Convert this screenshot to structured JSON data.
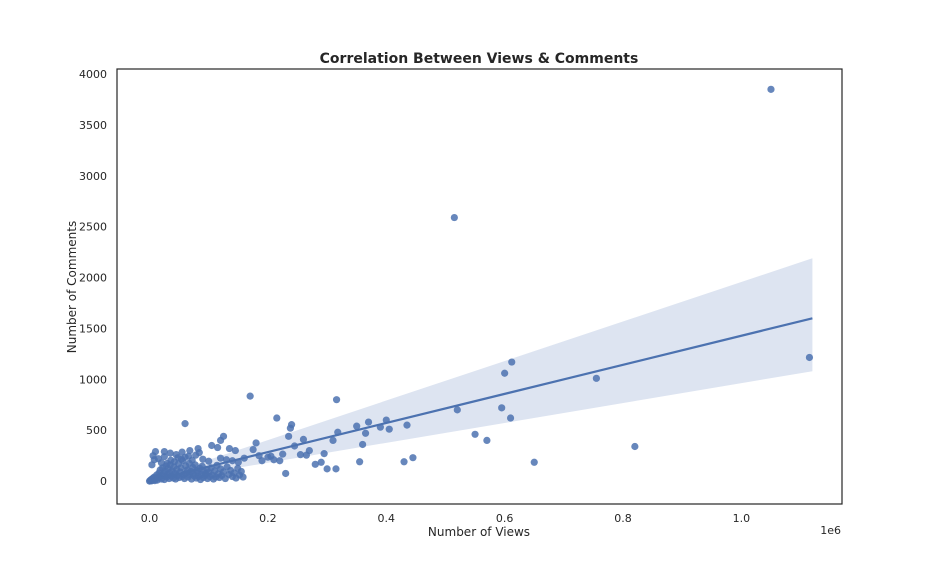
{
  "chart_data": {
    "type": "scatter",
    "title": "Correlation Between Views & Comments",
    "xlabel": "Number of Views",
    "ylabel": "Number of Comments",
    "x_offset_label": "1e6",
    "xlim": [
      -0.055,
      1.17
    ],
    "ylim": [
      -225,
      4050
    ],
    "x_ticks": [
      0.0,
      0.2,
      0.4,
      0.6,
      0.8,
      1.0
    ],
    "x_tick_labels": [
      "0.0",
      "0.2",
      "0.4",
      "0.6",
      "0.8",
      "1.0"
    ],
    "y_ticks": [
      0,
      500,
      1000,
      1500,
      2000,
      2500,
      3000,
      3500,
      4000
    ],
    "y_tick_labels": [
      "0",
      "500",
      "1000",
      "1500",
      "2000",
      "2500",
      "3000",
      "3500",
      "4000"
    ],
    "grid": false,
    "colors": {
      "points": "#4c72b0",
      "line": "#4c72b0",
      "band": "#dde4f1",
      "frame": "#262626"
    },
    "regression": {
      "x": [
        0.0,
        1.12
      ],
      "y": [
        0,
        1600
      ],
      "ci_upper_end": 2190,
      "ci_lower_end": 1080
    },
    "points": [
      [
        0.0,
        0
      ],
      [
        0.001,
        5
      ],
      [
        0.002,
        12
      ],
      [
        0.003,
        2
      ],
      [
        0.004,
        20
      ],
      [
        0.005,
        8
      ],
      [
        0.006,
        30
      ],
      [
        0.007,
        15
      ],
      [
        0.008,
        40
      ],
      [
        0.009,
        5
      ],
      [
        0.01,
        25
      ],
      [
        0.012,
        60
      ],
      [
        0.013,
        10
      ],
      [
        0.015,
        35
      ],
      [
        0.016,
        80
      ],
      [
        0.017,
        45
      ],
      [
        0.018,
        110
      ],
      [
        0.02,
        20
      ],
      [
        0.021,
        55
      ],
      [
        0.022,
        130
      ],
      [
        0.024,
        70
      ],
      [
        0.025,
        15
      ],
      [
        0.026,
        95
      ],
      [
        0.028,
        150
      ],
      [
        0.029,
        40
      ],
      [
        0.03,
        60
      ],
      [
        0.031,
        120
      ],
      [
        0.033,
        25
      ],
      [
        0.034,
        85
      ],
      [
        0.035,
        160
      ],
      [
        0.037,
        50
      ],
      [
        0.038,
        100
      ],
      [
        0.04,
        30
      ],
      [
        0.041,
        140
      ],
      [
        0.043,
        75
      ],
      [
        0.044,
        20
      ],
      [
        0.046,
        115
      ],
      [
        0.047,
        55
      ],
      [
        0.049,
        170
      ],
      [
        0.05,
        35
      ],
      [
        0.052,
        90
      ],
      [
        0.053,
        130
      ],
      [
        0.055,
        45
      ],
      [
        0.056,
        200
      ],
      [
        0.058,
        65
      ],
      [
        0.059,
        25
      ],
      [
        0.061,
        150
      ],
      [
        0.062,
        80
      ],
      [
        0.064,
        110
      ],
      [
        0.065,
        40
      ],
      [
        0.067,
        175
      ],
      [
        0.068,
        60
      ],
      [
        0.07,
        95
      ],
      [
        0.071,
        20
      ],
      [
        0.073,
        135
      ],
      [
        0.074,
        70
      ],
      [
        0.076,
        50
      ],
      [
        0.077,
        160
      ],
      [
        0.079,
        30
      ],
      [
        0.08,
        105
      ],
      [
        0.082,
        85
      ],
      [
        0.083,
        45
      ],
      [
        0.085,
        125
      ],
      [
        0.086,
        15
      ],
      [
        0.088,
        65
      ],
      [
        0.089,
        145
      ],
      [
        0.091,
        35
      ],
      [
        0.092,
        95
      ],
      [
        0.094,
        55
      ],
      [
        0.095,
        75
      ],
      [
        0.097,
        115
      ],
      [
        0.098,
        25
      ],
      [
        0.1,
        85
      ],
      [
        0.102,
        45
      ],
      [
        0.104,
        130
      ],
      [
        0.106,
        60
      ],
      [
        0.108,
        20
      ],
      [
        0.11,
        100
      ],
      [
        0.112,
        40
      ],
      [
        0.114,
        155
      ],
      [
        0.116,
        70
      ],
      [
        0.118,
        35
      ],
      [
        0.12,
        120
      ],
      [
        0.122,
        55
      ],
      [
        0.125,
        90
      ],
      [
        0.128,
        25
      ],
      [
        0.131,
        140
      ],
      [
        0.134,
        65
      ],
      [
        0.137,
        105
      ],
      [
        0.14,
        45
      ],
      [
        0.143,
        80
      ],
      [
        0.146,
        30
      ],
      [
        0.149,
        125
      ],
      [
        0.152,
        60
      ],
      [
        0.155,
        95
      ],
      [
        0.158,
        40
      ],
      [
        0.004,
        160
      ],
      [
        0.006,
        250
      ],
      [
        0.01,
        290
      ],
      [
        0.008,
        210
      ],
      [
        0.015,
        220
      ],
      [
        0.02,
        180
      ],
      [
        0.025,
        240
      ],
      [
        0.03,
        175
      ],
      [
        0.036,
        205
      ],
      [
        0.042,
        190
      ],
      [
        0.048,
        230
      ],
      [
        0.054,
        215
      ],
      [
        0.06,
        235
      ],
      [
        0.066,
        245
      ],
      [
        0.072,
        205
      ],
      [
        0.078,
        255
      ],
      [
        0.084,
        280
      ],
      [
        0.09,
        215
      ],
      [
        0.1,
        195
      ],
      [
        0.12,
        225
      ],
      [
        0.13,
        210
      ],
      [
        0.14,
        200
      ],
      [
        0.15,
        185
      ],
      [
        0.16,
        225
      ],
      [
        0.025,
        290
      ],
      [
        0.035,
        275
      ],
      [
        0.045,
        260
      ],
      [
        0.055,
        285
      ],
      [
        0.068,
        300
      ],
      [
        0.082,
        320
      ],
      [
        0.06,
        565
      ],
      [
        0.12,
        400
      ],
      [
        0.125,
        440
      ],
      [
        0.105,
        350
      ],
      [
        0.115,
        330
      ],
      [
        0.135,
        320
      ],
      [
        0.145,
        300
      ],
      [
        0.17,
        835
      ],
      [
        0.175,
        310
      ],
      [
        0.18,
        375
      ],
      [
        0.185,
        250
      ],
      [
        0.19,
        200
      ],
      [
        0.2,
        235
      ],
      [
        0.205,
        245
      ],
      [
        0.21,
        210
      ],
      [
        0.215,
        620
      ],
      [
        0.22,
        200
      ],
      [
        0.225,
        265
      ],
      [
        0.23,
        75
      ],
      [
        0.235,
        440
      ],
      [
        0.238,
        520
      ],
      [
        0.24,
        555
      ],
      [
        0.245,
        345
      ],
      [
        0.255,
        260
      ],
      [
        0.26,
        410
      ],
      [
        0.265,
        255
      ],
      [
        0.27,
        300
      ],
      [
        0.28,
        165
      ],
      [
        0.29,
        185
      ],
      [
        0.295,
        270
      ],
      [
        0.3,
        120
      ],
      [
        0.31,
        400
      ],
      [
        0.315,
        120
      ],
      [
        0.316,
        800
      ],
      [
        0.318,
        480
      ],
      [
        0.35,
        540
      ],
      [
        0.355,
        190
      ],
      [
        0.36,
        360
      ],
      [
        0.365,
        470
      ],
      [
        0.37,
        580
      ],
      [
        0.39,
        530
      ],
      [
        0.4,
        600
      ],
      [
        0.405,
        510
      ],
      [
        0.43,
        190
      ],
      [
        0.435,
        550
      ],
      [
        0.445,
        230
      ],
      [
        0.515,
        2590
      ],
      [
        0.52,
        700
      ],
      [
        0.55,
        460
      ],
      [
        0.57,
        400
      ],
      [
        0.595,
        720
      ],
      [
        0.6,
        1060
      ],
      [
        0.61,
        620
      ],
      [
        0.612,
        1170
      ],
      [
        0.65,
        185
      ],
      [
        0.755,
        1010
      ],
      [
        0.82,
        340
      ],
      [
        1.05,
        3850
      ],
      [
        1.115,
        1215
      ]
    ]
  }
}
